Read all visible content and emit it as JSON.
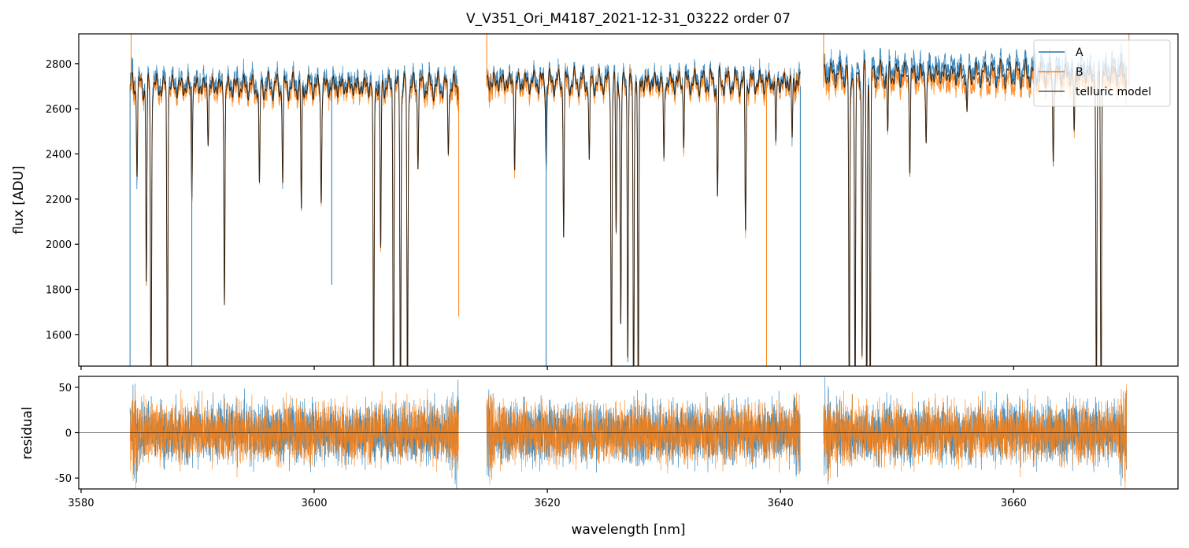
{
  "chart_data": {
    "type": "line",
    "title": "V_V351_Ori_M4187_2021-12-31_03222  order 07",
    "xlabel": "wavelength [nm]",
    "panels": [
      {
        "name": "flux",
        "ylabel": "flux [ADU]",
        "ylim": [
          1460,
          2932
        ],
        "yticks": [
          1600,
          1800,
          2000,
          2200,
          2400,
          2600,
          2800
        ]
      },
      {
        "name": "residual",
        "ylabel": "residual",
        "ylim": [
          -62,
          62
        ],
        "yticks": [
          -50,
          0,
          50
        ]
      }
    ],
    "xlim": [
      3579.8,
      3674.1
    ],
    "xticks": [
      3580,
      3600,
      3620,
      3640,
      3660
    ],
    "legend": {
      "placement": "top-right",
      "entries": [
        "A",
        "B",
        "telluric model"
      ]
    },
    "colors": {
      "A": "#1f77b4",
      "B": "#ff7f0e",
      "model": "#000000"
    },
    "segments": [
      {
        "range": [
          3584.2,
          3612.4
        ],
        "continuum_A": 2735,
        "continuum_B": 2700,
        "continuum_model": 2715
      },
      {
        "range": [
          3614.8,
          3641.7
        ],
        "continuum_A": 2745,
        "continuum_B": 2720,
        "continuum_model": 2735
      },
      {
        "range": [
          3643.7,
          3669.7
        ],
        "continuum_A": 2800,
        "continuum_B": 2740,
        "continuum_model": 2770
      }
    ],
    "absorption_lines": [
      {
        "wl": 3584.8,
        "min_flux": 2380
      },
      {
        "wl": 3585.6,
        "min_flux": 1900
      },
      {
        "wl": 3586.0,
        "min_flux": 1300
      },
      {
        "wl": 3587.4,
        "min_flux": 1300
      },
      {
        "wl": 3589.5,
        "min_flux": 2260
      },
      {
        "wl": 3590.9,
        "min_flux": 2500
      },
      {
        "wl": 3592.3,
        "min_flux": 1810
      },
      {
        "wl": 3595.3,
        "min_flux": 2260
      },
      {
        "wl": 3597.3,
        "min_flux": 2320
      },
      {
        "wl": 3598.9,
        "min_flux": 2170
      },
      {
        "wl": 3600.6,
        "min_flux": 2240
      },
      {
        "wl": 3605.1,
        "min_flux": 1300
      },
      {
        "wl": 3605.7,
        "min_flux": 2020
      },
      {
        "wl": 3606.8,
        "min_flux": 1300
      },
      {
        "wl": 3607.4,
        "min_flux": 1300
      },
      {
        "wl": 3608.0,
        "min_flux": 1300
      },
      {
        "wl": 3608.9,
        "min_flux": 2420
      },
      {
        "wl": 3611.5,
        "min_flux": 2440
      },
      {
        "wl": 3617.2,
        "min_flux": 2380
      },
      {
        "wl": 3619.9,
        "min_flux": 2400
      },
      {
        "wl": 3621.4,
        "min_flux": 2120
      },
      {
        "wl": 3623.6,
        "min_flux": 2380
      },
      {
        "wl": 3625.5,
        "min_flux": 1300
      },
      {
        "wl": 3625.9,
        "min_flux": 2100
      },
      {
        "wl": 3626.3,
        "min_flux": 1700
      },
      {
        "wl": 3626.9,
        "min_flux": 1600
      },
      {
        "wl": 3627.4,
        "min_flux": 1300
      },
      {
        "wl": 3627.8,
        "min_flux": 1300
      },
      {
        "wl": 3630.0,
        "min_flux": 2380
      },
      {
        "wl": 3631.7,
        "min_flux": 2500
      },
      {
        "wl": 3634.6,
        "min_flux": 2260
      },
      {
        "wl": 3637.0,
        "min_flux": 2120
      },
      {
        "wl": 3639.6,
        "min_flux": 2460
      },
      {
        "wl": 3641.0,
        "min_flux": 2500
      },
      {
        "wl": 3645.9,
        "min_flux": 1300
      },
      {
        "wl": 3646.4,
        "min_flux": 1300
      },
      {
        "wl": 3647.0,
        "min_flux": 1570
      },
      {
        "wl": 3647.4,
        "min_flux": 1300
      },
      {
        "wl": 3647.7,
        "min_flux": 1300
      },
      {
        "wl": 3649.2,
        "min_flux": 2520
      },
      {
        "wl": 3651.1,
        "min_flux": 2390
      },
      {
        "wl": 3652.5,
        "min_flux": 2480
      },
      {
        "wl": 3656.0,
        "min_flux": 2580
      },
      {
        "wl": 3663.4,
        "min_flux": 2410
      },
      {
        "wl": 3665.2,
        "min_flux": 2510
      },
      {
        "wl": 3667.1,
        "min_flux": 1300
      },
      {
        "wl": 3667.5,
        "min_flux": 1300
      }
    ],
    "spikes": {
      "A": [
        {
          "wl": 3584.2,
          "flux": 1460
        },
        {
          "wl": 3589.5,
          "flux": 1460
        },
        {
          "wl": 3601.5,
          "flux": 1820
        },
        {
          "wl": 3619.9,
          "flux": 1460
        },
        {
          "wl": 3641.7,
          "flux": 1460
        }
      ],
      "B": [
        {
          "wl": 3584.3,
          "flux": 2932
        },
        {
          "wl": 3612.4,
          "flux": 1680
        },
        {
          "wl": 3614.8,
          "flux": 2932
        },
        {
          "wl": 3638.8,
          "flux": 1460
        },
        {
          "wl": 3643.7,
          "flux": 2932
        },
        {
          "wl": 3669.9,
          "flux": 2932
        }
      ]
    },
    "residual_noise_amplitude": {
      "A": 30,
      "B": 30
    }
  }
}
